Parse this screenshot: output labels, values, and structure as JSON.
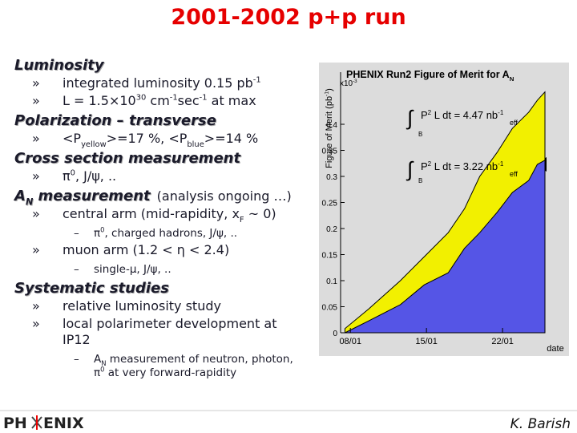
{
  "title": "2001-2002 p+p run",
  "bullet": "»",
  "dash": "–",
  "sections": [
    {
      "heading": [
        {
          "text": "Luminosity"
        }
      ],
      "items": [
        {
          "lines": [
            [
              {
                "text": "integrated luminosity 0.15 pb"
              },
              {
                "text": "-1",
                "script": "sup"
              }
            ]
          ]
        },
        {
          "lines": [
            [
              {
                "text": "L = 1.5×10"
              },
              {
                "text": "30",
                "script": "sup"
              },
              {
                "text": " cm"
              },
              {
                "text": "-1",
                "script": "sup"
              },
              {
                "text": "sec"
              },
              {
                "text": "-1",
                "script": "sup"
              },
              {
                "text": " at max"
              }
            ]
          ]
        }
      ]
    },
    {
      "heading": [
        {
          "text": "Polarization – transverse"
        }
      ],
      "items": [
        {
          "lines": [
            [
              {
                "text": "<P"
              },
              {
                "text": "yellow",
                "script": "sub"
              },
              {
                "text": ">=17 %, <P"
              },
              {
                "text": "blue",
                "script": "sub"
              },
              {
                "text": ">=14 %"
              }
            ]
          ]
        }
      ]
    },
    {
      "heading": [
        {
          "text": "Cross section measurement"
        }
      ],
      "items": [
        {
          "lines": [
            [
              {
                "text": "π"
              },
              {
                "text": "0",
                "script": "sup"
              },
              {
                "text": ", J/ψ, .."
              }
            ]
          ]
        }
      ]
    },
    {
      "heading": [
        {
          "text": "A"
        },
        {
          "text": "N",
          "script": "sub"
        },
        {
          "text": " measurement"
        }
      ],
      "note": "(analysis ongoing …)",
      "items": [
        {
          "lines": [
            [
              {
                "text": "central arm (mid-rapidity, x"
              },
              {
                "text": "F",
                "script": "sub"
              },
              {
                "text": " ~ 0)"
              }
            ]
          ],
          "sub": [
            {
              "lines": [
                [
                  {
                    "text": "π"
                  },
                  {
                    "text": "0",
                    "script": "sup"
                  },
                  {
                    "text": ", charged hadrons, J/ψ, .."
                  }
                ]
              ]
            }
          ]
        },
        {
          "lines": [
            [
              {
                "text": "muon arm (1.2 < η < 2.4)"
              }
            ]
          ],
          "sub": [
            {
              "lines": [
                [
                  {
                    "text": "single-μ, J/ψ, .."
                  }
                ]
              ]
            }
          ]
        }
      ]
    },
    {
      "heading": [
        {
          "text": "Systematic studies"
        }
      ],
      "items": [
        {
          "lines": [
            [
              {
                "text": "relative luminosity study"
              }
            ]
          ]
        },
        {
          "lines": [
            [
              {
                "text": "local polarimeter development at"
              }
            ],
            [
              {
                "text": "IP12"
              }
            ]
          ],
          "sub": [
            {
              "lines": [
                [
                  {
                    "text": "A"
                  },
                  {
                    "text": "N",
                    "script": "sub"
                  },
                  {
                    "text": " measurement of neutron, photon,"
                  }
                ],
                [
                  {
                    "text": "π"
                  },
                  {
                    "text": "0",
                    "script": "sup"
                  },
                  {
                    "text": " at very forward-rapidity"
                  }
                ]
              ]
            }
          ]
        }
      ]
    }
  ],
  "footer": {
    "logo_left": "PH",
    "logo_right": "ENIX",
    "author": "K. Barish"
  },
  "chart_data": {
    "type": "area",
    "title": [
      {
        "text": "PHENIX Run2 Figure of Merit for A"
      },
      {
        "text": "N",
        "script": "sub"
      }
    ],
    "ylabel": [
      {
        "text": "Figure of Merit (pb"
      },
      {
        "text": "-1",
        "script": "sup"
      },
      {
        "text": ")"
      }
    ],
    "multiplier": [
      {
        "text": "x10"
      },
      {
        "text": "-3",
        "script": "sup"
      }
    ],
    "xlabel": "date",
    "x": [
      7.5,
      9.7,
      12.6,
      14.8,
      17.0,
      18.5,
      19.9,
      21.5,
      22.9,
      24.4,
      25.2,
      25.9
    ],
    "series": [
      {
        "color": "#f2f000",
        "values": [
          0.008,
          0.046,
          0.1,
          0.146,
          0.192,
          0.238,
          0.3,
          0.346,
          0.392,
          0.423,
          0.446,
          0.462
        ]
      },
      {
        "color": "#5555e6",
        "values": [
          0,
          0.023,
          0.054,
          0.092,
          0.115,
          0.162,
          0.192,
          0.231,
          0.269,
          0.292,
          0.323,
          0.331
        ]
      }
    ],
    "xlim": [
      7.1,
      25.9
    ],
    "xticks": [
      {
        "value": 8,
        "label": "08/01"
      },
      {
        "value": 15,
        "label": "15/01"
      },
      {
        "value": 22,
        "label": "22/01"
      }
    ],
    "ylim": [
      0,
      0.5
    ],
    "yticks": [
      0,
      0.05,
      0.1,
      0.15,
      0.2,
      0.25,
      0.3,
      0.35,
      0.4
    ],
    "annotations": [
      {
        "integral": "∫",
        "runs": [
          {
            "text": "P"
          },
          {
            "text": "2",
            "script": "sup"
          },
          {
            "text": " L dt = 4.47 nb"
          },
          {
            "text": "-1",
            "script": "sup"
          }
        ],
        "lower": "B",
        "suffix": "eff"
      },
      {
        "integral": "∫",
        "runs": [
          {
            "text": "P"
          },
          {
            "text": "2",
            "script": "sup"
          },
          {
            "text": " L dt = 3.22 nb"
          },
          {
            "text": "-1",
            "script": "sup"
          }
        ],
        "lower": "B",
        "suffix": "eff"
      }
    ]
  }
}
